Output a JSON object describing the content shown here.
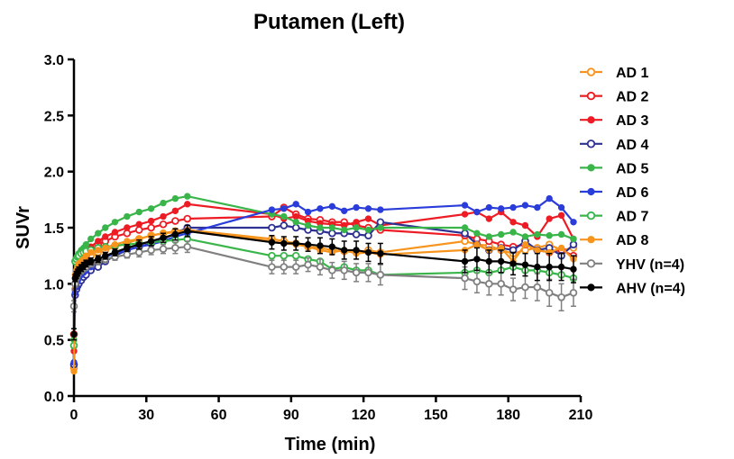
{
  "chart_data": {
    "type": "line",
    "title": "Putamen (Left)",
    "xlabel": "Time (min)",
    "ylabel": "SUVr",
    "xlim": [
      0,
      210
    ],
    "ylim": [
      0.0,
      3.0
    ],
    "xticks": [
      0,
      30,
      60,
      90,
      120,
      150,
      180,
      210
    ],
    "yticks": [
      0.0,
      0.5,
      1.0,
      1.5,
      2.0,
      2.5,
      3.0
    ],
    "xtick_labels": [
      "0",
      "30",
      "60",
      "90",
      "120",
      "150",
      "180",
      "210"
    ],
    "ytick_labels": [
      "0.0",
      "0.5",
      "1.0",
      "1.5",
      "2.0",
      "2.5",
      "3.0"
    ],
    "grid": false,
    "legend_position": "right",
    "series": [
      {
        "name": "AD 1",
        "color": "#f7941d",
        "marker": "open",
        "x": [
          0,
          0.5,
          1,
          1.5,
          2,
          3,
          4,
          5,
          7,
          10,
          13,
          17,
          22,
          27,
          32,
          37,
          42,
          47,
          82,
          87,
          92,
          97,
          102,
          107,
          112,
          117,
          122,
          127,
          162,
          167,
          172,
          177,
          182,
          187,
          192,
          197,
          202,
          207
        ],
        "y": [
          0.25,
          0.95,
          1.08,
          1.12,
          1.15,
          1.18,
          1.2,
          1.22,
          1.25,
          1.28,
          1.3,
          1.33,
          1.36,
          1.4,
          1.43,
          1.45,
          1.47,
          1.48,
          1.4,
          1.38,
          1.36,
          1.33,
          1.32,
          1.3,
          1.29,
          1.28,
          1.3,
          1.28,
          1.38,
          1.35,
          1.34,
          1.3,
          1.27,
          1.3,
          1.32,
          1.35,
          1.3,
          1.32
        ]
      },
      {
        "name": "AD 2",
        "color": "#ed1c24",
        "marker": "open",
        "x": [
          0,
          0.5,
          1,
          1.5,
          2,
          3,
          4,
          5,
          7,
          10,
          13,
          17,
          22,
          27,
          32,
          37,
          42,
          47,
          82,
          87,
          92,
          97,
          102,
          107,
          112,
          117,
          122,
          127,
          162,
          167,
          172,
          177,
          182,
          187,
          192,
          197,
          202,
          207
        ],
        "y": [
          0.55,
          1.0,
          1.05,
          1.1,
          1.15,
          1.2,
          1.23,
          1.25,
          1.3,
          1.35,
          1.38,
          1.42,
          1.45,
          1.48,
          1.5,
          1.53,
          1.56,
          1.58,
          1.6,
          1.68,
          1.62,
          1.58,
          1.57,
          1.55,
          1.55,
          1.52,
          1.5,
          1.48,
          1.43,
          1.4,
          1.38,
          1.35,
          1.33,
          1.35,
          1.3,
          1.28,
          1.3,
          1.25
        ]
      },
      {
        "name": "AD 3",
        "color": "#ed1c24",
        "marker": "filled",
        "x": [
          0,
          0.5,
          1,
          1.5,
          2,
          3,
          4,
          5,
          7,
          10,
          13,
          17,
          22,
          27,
          32,
          37,
          42,
          47,
          82,
          87,
          92,
          97,
          102,
          107,
          112,
          117,
          122,
          127,
          162,
          167,
          172,
          177,
          182,
          187,
          192,
          197,
          202,
          207
        ],
        "y": [
          0.4,
          1.05,
          1.1,
          1.15,
          1.18,
          1.22,
          1.25,
          1.28,
          1.33,
          1.38,
          1.42,
          1.46,
          1.5,
          1.53,
          1.56,
          1.6,
          1.65,
          1.71,
          1.62,
          1.58,
          1.6,
          1.56,
          1.54,
          1.53,
          1.52,
          1.55,
          1.58,
          1.52,
          1.62,
          1.64,
          1.58,
          1.64,
          1.55,
          1.52,
          1.42,
          1.58,
          1.61,
          1.4
        ]
      },
      {
        "name": "AD 4",
        "color": "#2e3192",
        "marker": "open",
        "x": [
          0,
          0.5,
          1,
          1.5,
          2,
          3,
          4,
          5,
          7,
          10,
          13,
          17,
          22,
          27,
          32,
          37,
          42,
          47,
          82,
          87,
          92,
          97,
          102,
          107,
          112,
          117,
          122,
          127,
          162,
          167,
          172,
          177,
          182,
          187,
          192,
          197,
          202,
          207
        ],
        "y": [
          0.28,
          0.9,
          0.95,
          0.98,
          1.0,
          1.03,
          1.06,
          1.08,
          1.12,
          1.15,
          1.2,
          1.25,
          1.3,
          1.33,
          1.36,
          1.4,
          1.45,
          1.5,
          1.5,
          1.52,
          1.5,
          1.48,
          1.47,
          1.45,
          1.45,
          1.44,
          1.43,
          1.55,
          1.45,
          1.35,
          1.3,
          1.32,
          1.3,
          1.38,
          1.3,
          1.32,
          1.25,
          1.35
        ]
      },
      {
        "name": "AD 5",
        "color": "#39b54a",
        "marker": "filled",
        "x": [
          0,
          0.5,
          1,
          1.5,
          2,
          3,
          4,
          5,
          7,
          10,
          13,
          17,
          22,
          27,
          32,
          37,
          42,
          47,
          82,
          87,
          92,
          97,
          102,
          107,
          112,
          117,
          122,
          127,
          162,
          167,
          172,
          177,
          182,
          187,
          192,
          197,
          202,
          207
        ],
        "y": [
          0.5,
          1.2,
          1.22,
          1.25,
          1.27,
          1.3,
          1.32,
          1.35,
          1.4,
          1.45,
          1.5,
          1.55,
          1.6,
          1.64,
          1.67,
          1.72,
          1.76,
          1.78,
          1.62,
          1.6,
          1.55,
          1.52,
          1.5,
          1.5,
          1.48,
          1.5,
          1.48,
          1.5,
          1.5,
          1.45,
          1.42,
          1.44,
          1.46,
          1.42,
          1.44,
          1.43,
          1.44,
          1.4
        ]
      },
      {
        "name": "AD 6",
        "color": "#2a3cd9",
        "marker": "filled",
        "x": [
          0,
          0.5,
          1,
          1.5,
          2,
          3,
          4,
          5,
          7,
          10,
          13,
          17,
          22,
          27,
          32,
          37,
          42,
          47,
          82,
          87,
          92,
          97,
          102,
          107,
          112,
          117,
          122,
          127,
          162,
          167,
          172,
          177,
          182,
          187,
          192,
          197,
          202,
          207
        ],
        "y": [
          0.3,
          0.92,
          0.98,
          1.02,
          1.05,
          1.08,
          1.1,
          1.12,
          1.15,
          1.2,
          1.24,
          1.27,
          1.3,
          1.33,
          1.35,
          1.38,
          1.42,
          1.45,
          1.66,
          1.67,
          1.71,
          1.64,
          1.67,
          1.69,
          1.65,
          1.68,
          1.67,
          1.66,
          1.7,
          1.64,
          1.68,
          1.67,
          1.68,
          1.7,
          1.68,
          1.76,
          1.68,
          1.55
        ]
      },
      {
        "name": "AD 7",
        "color": "#39b54a",
        "marker": "open",
        "x": [
          0,
          0.5,
          1,
          1.5,
          2,
          3,
          4,
          5,
          7,
          10,
          13,
          17,
          22,
          27,
          32,
          37,
          42,
          47,
          82,
          87,
          92,
          97,
          102,
          107,
          112,
          117,
          122,
          127,
          162,
          167,
          172,
          177,
          182,
          187,
          192,
          197,
          202,
          207
        ],
        "y": [
          0.45,
          1.2,
          1.22,
          1.24,
          1.25,
          1.27,
          1.28,
          1.29,
          1.3,
          1.32,
          1.33,
          1.34,
          1.35,
          1.36,
          1.37,
          1.38,
          1.39,
          1.4,
          1.25,
          1.25,
          1.25,
          1.22,
          1.2,
          1.13,
          1.15,
          1.12,
          1.12,
          1.08,
          1.1,
          1.12,
          1.1,
          1.12,
          1.15,
          1.12,
          1.12,
          1.1,
          1.08,
          1.05
        ]
      },
      {
        "name": "AD 8",
        "color": "#f7941d",
        "marker": "filled",
        "x": [
          0,
          0.5,
          1,
          1.5,
          2,
          3,
          4,
          5,
          7,
          10,
          13,
          17,
          22,
          27,
          32,
          37,
          42,
          47,
          82,
          87,
          92,
          97,
          102,
          107,
          112,
          117,
          122,
          127,
          162,
          167,
          172,
          177,
          182,
          187,
          192,
          197,
          202,
          207
        ],
        "y": [
          0.22,
          1.08,
          1.12,
          1.15,
          1.18,
          1.2,
          1.22,
          1.25,
          1.28,
          1.3,
          1.32,
          1.35,
          1.38,
          1.4,
          1.43,
          1.45,
          1.46,
          1.48,
          1.38,
          1.36,
          1.35,
          1.33,
          1.3,
          1.28,
          1.3,
          1.27,
          1.28,
          1.26,
          1.3,
          1.35,
          1.3,
          1.32,
          1.2,
          1.35,
          1.3,
          1.28,
          1.32,
          1.22
        ]
      },
      {
        "name": "YHV (n=4)",
        "color": "#808080",
        "marker": "open",
        "error_bars": true,
        "x": [
          0,
          0.5,
          1,
          1.5,
          2,
          3,
          4,
          5,
          7,
          10,
          13,
          17,
          22,
          27,
          32,
          37,
          42,
          47,
          82,
          87,
          92,
          97,
          102,
          107,
          112,
          117,
          122,
          127,
          162,
          167,
          172,
          177,
          182,
          187,
          192,
          197,
          202,
          207
        ],
        "y": [
          0.8,
          1.0,
          1.05,
          1.08,
          1.1,
          1.12,
          1.14,
          1.15,
          1.18,
          1.2,
          1.22,
          1.24,
          1.26,
          1.28,
          1.3,
          1.31,
          1.32,
          1.33,
          1.15,
          1.15,
          1.15,
          1.17,
          1.15,
          1.12,
          1.12,
          1.1,
          1.1,
          1.08,
          1.05,
          1.02,
          1.0,
          1.0,
          0.95,
          0.97,
          0.97,
          0.92,
          0.88,
          0.92
        ],
        "err": [
          0.05,
          0.03,
          0.03,
          0.03,
          0.03,
          0.03,
          0.03,
          0.03,
          0.03,
          0.03,
          0.03,
          0.03,
          0.03,
          0.04,
          0.04,
          0.04,
          0.05,
          0.05,
          0.06,
          0.06,
          0.06,
          0.06,
          0.07,
          0.07,
          0.08,
          0.08,
          0.08,
          0.09,
          0.1,
          0.1,
          0.1,
          0.1,
          0.1,
          0.1,
          0.12,
          0.12,
          0.12,
          0.12
        ]
      },
      {
        "name": "AHV (n=4)",
        "color": "#000000",
        "marker": "filled",
        "error_bars": true,
        "x": [
          0,
          0.5,
          1,
          1.5,
          2,
          3,
          4,
          5,
          7,
          10,
          13,
          17,
          22,
          27,
          32,
          37,
          42,
          47,
          82,
          87,
          92,
          97,
          102,
          107,
          112,
          117,
          122,
          127,
          162,
          167,
          172,
          177,
          182,
          187,
          192,
          197,
          202,
          207
        ],
        "y": [
          0.55,
          1.05,
          1.08,
          1.1,
          1.12,
          1.14,
          1.16,
          1.18,
          1.2,
          1.22,
          1.25,
          1.28,
          1.32,
          1.35,
          1.38,
          1.41,
          1.44,
          1.47,
          1.37,
          1.36,
          1.36,
          1.35,
          1.34,
          1.33,
          1.3,
          1.3,
          1.28,
          1.27,
          1.2,
          1.22,
          1.2,
          1.2,
          1.18,
          1.17,
          1.15,
          1.15,
          1.15,
          1.13
        ],
        "err": [
          0.05,
          0.03,
          0.03,
          0.03,
          0.03,
          0.03,
          0.03,
          0.03,
          0.03,
          0.03,
          0.03,
          0.03,
          0.03,
          0.04,
          0.04,
          0.04,
          0.05,
          0.05,
          0.06,
          0.06,
          0.06,
          0.06,
          0.07,
          0.07,
          0.08,
          0.08,
          0.08,
          0.09,
          0.1,
          0.1,
          0.1,
          0.1,
          0.1,
          0.1,
          0.12,
          0.12,
          0.12,
          0.12
        ]
      }
    ]
  }
}
